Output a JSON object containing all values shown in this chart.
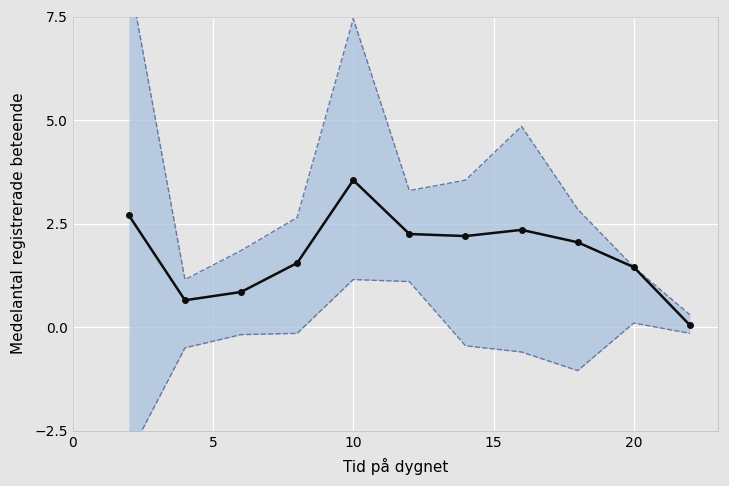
{
  "x": [
    2,
    4,
    6,
    8,
    10,
    12,
    14,
    16,
    18,
    20,
    22
  ],
  "mean": [
    2.7,
    0.65,
    0.85,
    1.55,
    3.55,
    2.25,
    2.2,
    2.35,
    2.05,
    1.45,
    0.05
  ],
  "upper": [
    8.5,
    1.15,
    1.85,
    2.65,
    7.45,
    3.3,
    3.55,
    4.85,
    2.85,
    1.45,
    0.3
  ],
  "lower": [
    -3.1,
    -0.5,
    -0.18,
    -0.15,
    1.15,
    1.1,
    -0.45,
    -0.6,
    -1.05,
    0.1,
    -0.15
  ],
  "xlabel": "Tid på dygnet",
  "ylabel": "Medelantal registrerade beteende",
  "xlim": [
    0,
    23
  ],
  "ylim": [
    -2.5,
    7.5
  ],
  "xticks": [
    0,
    5,
    10,
    15,
    20
  ],
  "yticks": [
    -2.5,
    0.0,
    2.5,
    5.0,
    7.5
  ],
  "fill_color": "#a8c1de",
  "fill_alpha": 0.75,
  "line_color": "#0d0d0d",
  "line_width": 1.8,
  "marker": "o",
  "marker_size": 4,
  "dash_color": "#5a6ea0",
  "dash_alpha": 0.9,
  "background_color": "#e5e5e5",
  "plot_bg_color": "#e5e5e5",
  "grid_color": "#ffffff",
  "grid_linewidth": 0.9,
  "label_fontsize": 11,
  "tick_fontsize": 10
}
